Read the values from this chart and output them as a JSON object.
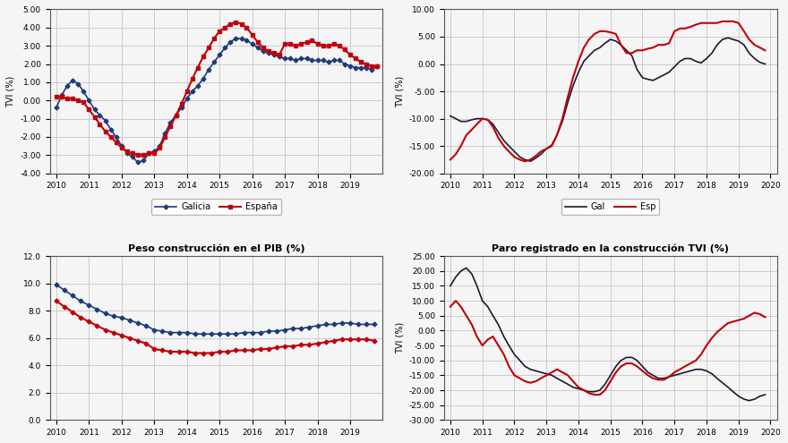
{
  "plot1": {
    "title": "",
    "ylabel": "TVI (%)",
    "ylim": [
      -4.0,
      5.0
    ],
    "yticks": [
      -4.0,
      -3.0,
      -2.0,
      -1.0,
      0.0,
      1.0,
      2.0,
      3.0,
      4.0,
      5.0
    ],
    "xlim": [
      2009.8,
      2020.0
    ],
    "xticks": [
      2010,
      2011,
      2012,
      2013,
      2014,
      2015,
      2016,
      2017,
      2018,
      2019
    ],
    "legend": [
      "Galicia",
      "España"
    ],
    "line1_color": "#1f3a7a",
    "line2_color": "#c0000b",
    "line1_marker": "D",
    "line2_marker": "s",
    "galicia_x": [
      2010.0,
      2010.17,
      2010.33,
      2010.5,
      2010.67,
      2010.83,
      2011.0,
      2011.17,
      2011.33,
      2011.5,
      2011.67,
      2011.83,
      2012.0,
      2012.17,
      2012.33,
      2012.5,
      2012.67,
      2012.83,
      2013.0,
      2013.17,
      2013.33,
      2013.5,
      2013.67,
      2013.83,
      2014.0,
      2014.17,
      2014.33,
      2014.5,
      2014.67,
      2014.83,
      2015.0,
      2015.17,
      2015.33,
      2015.5,
      2015.67,
      2015.83,
      2016.0,
      2016.17,
      2016.33,
      2016.5,
      2016.67,
      2016.83,
      2017.0,
      2017.17,
      2017.33,
      2017.5,
      2017.67,
      2017.83,
      2018.0,
      2018.17,
      2018.33,
      2018.5,
      2018.67,
      2018.83,
      2019.0,
      2019.17,
      2019.33,
      2019.5,
      2019.67,
      2019.83
    ],
    "galicia_y": [
      -0.4,
      0.3,
      0.8,
      1.1,
      0.9,
      0.5,
      0.0,
      -0.5,
      -0.8,
      -1.1,
      -1.6,
      -2.0,
      -2.5,
      -2.9,
      -3.1,
      -3.4,
      -3.3,
      -2.9,
      -2.8,
      -2.5,
      -1.8,
      -1.2,
      -0.8,
      -0.4,
      0.1,
      0.5,
      0.8,
      1.2,
      1.7,
      2.1,
      2.5,
      2.9,
      3.2,
      3.4,
      3.4,
      3.3,
      3.1,
      2.9,
      2.7,
      2.6,
      2.5,
      2.4,
      2.3,
      2.3,
      2.2,
      2.3,
      2.3,
      2.2,
      2.2,
      2.2,
      2.1,
      2.2,
      2.2,
      2.0,
      1.9,
      1.8,
      1.8,
      1.8,
      1.7,
      1.9
    ],
    "espana_x": [
      2010.0,
      2010.17,
      2010.33,
      2010.5,
      2010.67,
      2010.83,
      2011.0,
      2011.17,
      2011.33,
      2011.5,
      2011.67,
      2011.83,
      2012.0,
      2012.17,
      2012.33,
      2012.5,
      2012.67,
      2012.83,
      2013.0,
      2013.17,
      2013.33,
      2013.5,
      2013.67,
      2013.83,
      2014.0,
      2014.17,
      2014.33,
      2014.5,
      2014.67,
      2014.83,
      2015.0,
      2015.17,
      2015.33,
      2015.5,
      2015.67,
      2015.83,
      2016.0,
      2016.17,
      2016.33,
      2016.5,
      2016.67,
      2016.83,
      2017.0,
      2017.17,
      2017.33,
      2017.5,
      2017.67,
      2017.83,
      2018.0,
      2018.17,
      2018.33,
      2018.5,
      2018.67,
      2018.83,
      2019.0,
      2019.17,
      2019.33,
      2019.5,
      2019.67,
      2019.83
    ],
    "espana_y": [
      0.2,
      0.2,
      0.1,
      0.1,
      0.0,
      -0.1,
      -0.5,
      -0.9,
      -1.3,
      -1.7,
      -2.0,
      -2.3,
      -2.6,
      -2.8,
      -2.9,
      -3.0,
      -3.0,
      -2.9,
      -2.9,
      -2.6,
      -2.0,
      -1.4,
      -0.8,
      -0.2,
      0.5,
      1.2,
      1.8,
      2.4,
      2.9,
      3.4,
      3.8,
      4.0,
      4.2,
      4.3,
      4.2,
      4.0,
      3.6,
      3.2,
      2.9,
      2.7,
      2.6,
      2.5,
      3.1,
      3.1,
      3.0,
      3.1,
      3.2,
      3.3,
      3.1,
      3.0,
      3.0,
      3.1,
      3.0,
      2.8,
      2.5,
      2.3,
      2.1,
      2.0,
      1.9,
      1.9
    ]
  },
  "plot2": {
    "title": "",
    "ylabel": "TVI (%)",
    "ylim": [
      -20.0,
      10.0
    ],
    "yticks": [
      -20.0,
      -15.0,
      -10.0,
      -5.0,
      0.0,
      5.0,
      10.0
    ],
    "xlim": [
      2009.8,
      2020.2
    ],
    "xticks": [
      2010,
      2011,
      2012,
      2013,
      2014,
      2015,
      2016,
      2017,
      2018,
      2019,
      2020
    ],
    "legend": [
      "Gal",
      "Esp"
    ],
    "line1_color": "#1a1a2e",
    "line2_color": "#c0000b",
    "gal_x": [
      2010.0,
      2010.17,
      2010.33,
      2010.5,
      2010.67,
      2010.83,
      2011.0,
      2011.17,
      2011.33,
      2011.5,
      2011.67,
      2011.83,
      2012.0,
      2012.17,
      2012.33,
      2012.5,
      2012.67,
      2012.83,
      2013.0,
      2013.17,
      2013.33,
      2013.5,
      2013.67,
      2013.83,
      2014.0,
      2014.17,
      2014.33,
      2014.5,
      2014.67,
      2014.83,
      2015.0,
      2015.17,
      2015.33,
      2015.5,
      2015.67,
      2015.83,
      2016.0,
      2016.17,
      2016.33,
      2016.5,
      2016.67,
      2016.83,
      2017.0,
      2017.17,
      2017.33,
      2017.5,
      2017.67,
      2017.83,
      2018.0,
      2018.17,
      2018.33,
      2018.5,
      2018.67,
      2018.83,
      2019.0,
      2019.17,
      2019.33,
      2019.5,
      2019.67,
      2019.83
    ],
    "gal_y": [
      -9.5,
      -10.0,
      -10.5,
      -10.5,
      -10.2,
      -10.0,
      -10.0,
      -10.2,
      -11.0,
      -12.5,
      -14.0,
      -15.0,
      -16.0,
      -17.0,
      -17.5,
      -17.8,
      -17.2,
      -16.5,
      -15.5,
      -14.8,
      -13.0,
      -10.5,
      -7.0,
      -4.0,
      -1.5,
      0.5,
      1.5,
      2.5,
      3.0,
      3.8,
      4.5,
      4.2,
      3.5,
      2.5,
      1.5,
      -1.0,
      -2.5,
      -2.8,
      -3.0,
      -2.5,
      -2.0,
      -1.5,
      -0.5,
      0.5,
      1.0,
      1.0,
      0.5,
      0.2,
      1.0,
      2.0,
      3.5,
      4.5,
      4.8,
      4.5,
      4.2,
      3.5,
      2.0,
      1.0,
      0.3,
      0.0
    ],
    "esp_y": [
      -17.5,
      -16.5,
      -15.0,
      -13.0,
      -12.0,
      -11.0,
      -10.0,
      -10.2,
      -11.5,
      -13.5,
      -15.0,
      -16.0,
      -17.0,
      -17.5,
      -17.8,
      -17.5,
      -16.8,
      -16.0,
      -15.5,
      -15.0,
      -13.0,
      -10.0,
      -6.0,
      -2.5,
      0.5,
      3.0,
      4.5,
      5.5,
      6.0,
      6.0,
      5.8,
      5.5,
      3.5,
      2.0,
      2.0,
      2.5,
      2.5,
      2.8,
      3.0,
      3.5,
      3.5,
      3.8,
      6.0,
      6.5,
      6.5,
      6.8,
      7.2,
      7.5,
      7.5,
      7.5,
      7.5,
      7.8,
      7.8,
      7.8,
      7.5,
      6.0,
      4.5,
      3.5,
      3.0,
      2.5
    ]
  },
  "plot3": {
    "title": "Peso construcción en el PIB (%)",
    "ylabel": "",
    "ylim": [
      0.0,
      12.0
    ],
    "yticks": [
      0.0,
      2.0,
      4.0,
      6.0,
      8.0,
      10.0,
      12.0
    ],
    "xlim": [
      2009.8,
      2020.0
    ],
    "xticks": [
      2010,
      2011,
      2012,
      2013,
      2014,
      2015,
      2016,
      2017,
      2018,
      2019
    ],
    "line1_color": "#1f3a7a",
    "line2_color": "#c0000b",
    "line1_marker": "D",
    "line2_marker": "D",
    "gal_x": [
      2010.0,
      2010.25,
      2010.5,
      2010.75,
      2011.0,
      2011.25,
      2011.5,
      2011.75,
      2012.0,
      2012.25,
      2012.5,
      2012.75,
      2013.0,
      2013.25,
      2013.5,
      2013.75,
      2014.0,
      2014.25,
      2014.5,
      2014.75,
      2015.0,
      2015.25,
      2015.5,
      2015.75,
      2016.0,
      2016.25,
      2016.5,
      2016.75,
      2017.0,
      2017.25,
      2017.5,
      2017.75,
      2018.0,
      2018.25,
      2018.5,
      2018.75,
      2019.0,
      2019.25,
      2019.5,
      2019.75
    ],
    "gal_y": [
      9.9,
      9.5,
      9.1,
      8.7,
      8.4,
      8.1,
      7.8,
      7.6,
      7.5,
      7.3,
      7.1,
      6.9,
      6.6,
      6.5,
      6.4,
      6.4,
      6.4,
      6.3,
      6.3,
      6.3,
      6.3,
      6.3,
      6.3,
      6.4,
      6.4,
      6.4,
      6.5,
      6.5,
      6.6,
      6.7,
      6.7,
      6.8,
      6.9,
      7.0,
      7.0,
      7.1,
      7.1,
      7.0,
      7.0,
      7.0
    ],
    "esp_y": [
      8.7,
      8.3,
      7.9,
      7.5,
      7.2,
      6.9,
      6.6,
      6.4,
      6.2,
      6.0,
      5.8,
      5.6,
      5.2,
      5.1,
      5.0,
      5.0,
      5.0,
      4.9,
      4.9,
      4.9,
      5.0,
      5.0,
      5.1,
      5.1,
      5.1,
      5.2,
      5.2,
      5.3,
      5.4,
      5.4,
      5.5,
      5.5,
      5.6,
      5.7,
      5.8,
      5.9,
      5.9,
      5.9,
      5.9,
      5.8
    ]
  },
  "plot4": {
    "title": "Paro registrado en la construcción TVI (%)",
    "ylabel": "TVI (%)",
    "ylim": [
      -30.0,
      25.0
    ],
    "yticks": [
      -30.0,
      -25.0,
      -20.0,
      -15.0,
      -10.0,
      -5.0,
      0.0,
      5.0,
      10.0,
      15.0,
      20.0,
      25.0
    ],
    "xlim": [
      2009.8,
      2020.2
    ],
    "xticks": [
      2010,
      2011,
      2012,
      2013,
      2014,
      2015,
      2016,
      2017,
      2018,
      2019,
      2020
    ],
    "line1_color": "#1a1a2e",
    "line2_color": "#c0000b",
    "gal_x": [
      2010.0,
      2010.17,
      2010.33,
      2010.5,
      2010.67,
      2010.83,
      2011.0,
      2011.17,
      2011.33,
      2011.5,
      2011.67,
      2011.83,
      2012.0,
      2012.17,
      2012.33,
      2012.5,
      2012.67,
      2012.83,
      2013.0,
      2013.17,
      2013.33,
      2013.5,
      2013.67,
      2013.83,
      2014.0,
      2014.17,
      2014.33,
      2014.5,
      2014.67,
      2014.83,
      2015.0,
      2015.17,
      2015.33,
      2015.5,
      2015.67,
      2015.83,
      2016.0,
      2016.17,
      2016.33,
      2016.5,
      2016.67,
      2016.83,
      2017.0,
      2017.17,
      2017.33,
      2017.5,
      2017.67,
      2017.83,
      2018.0,
      2018.17,
      2018.33,
      2018.5,
      2018.67,
      2018.83,
      2019.0,
      2019.17,
      2019.33,
      2019.5,
      2019.67,
      2019.83
    ],
    "gal_y": [
      15.0,
      18.0,
      20.0,
      21.0,
      19.0,
      15.0,
      10.0,
      8.0,
      5.0,
      2.0,
      -2.0,
      -5.0,
      -8.0,
      -10.0,
      -12.0,
      -13.0,
      -13.5,
      -14.0,
      -14.5,
      -15.0,
      -16.0,
      -17.0,
      -18.0,
      -19.0,
      -19.5,
      -20.0,
      -20.5,
      -20.5,
      -20.0,
      -18.0,
      -15.0,
      -12.0,
      -10.0,
      -9.0,
      -9.0,
      -10.0,
      -12.0,
      -14.0,
      -15.0,
      -16.0,
      -16.0,
      -15.5,
      -15.0,
      -14.5,
      -14.0,
      -13.5,
      -13.0,
      -13.0,
      -13.5,
      -14.5,
      -16.0,
      -17.5,
      -19.0,
      -20.5,
      -22.0,
      -23.0,
      -23.5,
      -23.0,
      -22.0,
      -21.5
    ],
    "esp_y": [
      8.0,
      10.0,
      8.0,
      5.0,
      2.0,
      -2.0,
      -5.0,
      -3.0,
      -2.0,
      -5.0,
      -8.0,
      -12.0,
      -15.0,
      -16.0,
      -17.0,
      -17.5,
      -17.0,
      -16.0,
      -15.0,
      -14.0,
      -13.0,
      -14.0,
      -15.0,
      -17.0,
      -19.0,
      -20.0,
      -21.0,
      -21.5,
      -21.5,
      -20.0,
      -17.0,
      -14.0,
      -12.0,
      -11.0,
      -11.0,
      -12.0,
      -13.5,
      -15.0,
      -16.0,
      -16.5,
      -16.5,
      -15.5,
      -14.0,
      -13.0,
      -12.0,
      -11.0,
      -10.0,
      -8.0,
      -5.0,
      -2.5,
      -0.5,
      1.0,
      2.5,
      3.0,
      3.5,
      4.0,
      5.0,
      6.0,
      5.5,
      4.5
    ]
  },
  "bg_color": "#f5f5f5",
  "grid_color": "#cccccc"
}
